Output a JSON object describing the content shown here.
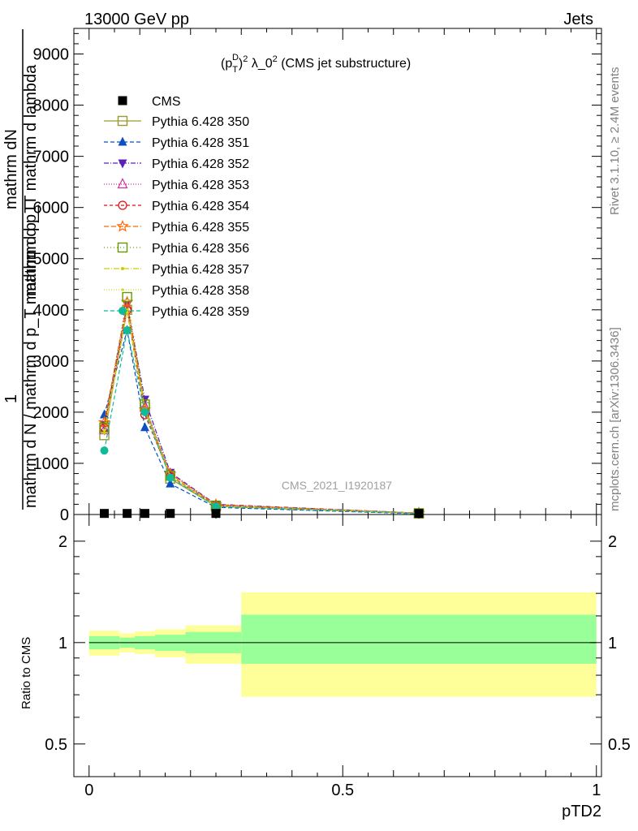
{
  "header": {
    "left": "13000 GeV pp",
    "right": "Jets"
  },
  "side": {
    "rivet": "Rivet 3.1.10, ≥ 2.4M events",
    "mcplots": "mcplots.cern.ch [arXiv:1306.3436]"
  },
  "watermark": "CMS_2021_I1920187",
  "colors": {
    "band_inner": "#99ff99",
    "band_outer": "#ffff99",
    "data": "#000000"
  },
  "chart_data": [
    {
      "type": "line",
      "title": "(p_T^D)^2 λ_0^2 (CMS jet substructure)",
      "title_parts": {
        "base": "(p",
        "sub": "T",
        "sup": "D",
        "tail1": ")",
        "sup2": "2",
        "tail2": " λ_0",
        "sup3": "2",
        "tail3": " (CMS jet substructure)"
      },
      "ylabel_num": "1",
      "ylabel_top": "mathrm dN",
      "ylabel_top2": "mathrm d p_T mathrm d lambda",
      "ylabel_bottom": "mathrm d N / mathrm d p_T mathrm d p_T",
      "xlabel": "pTD2",
      "xlim": [
        -0.03,
        1.01
      ],
      "ylim": [
        0,
        9500
      ],
      "yticks": [
        0,
        1000,
        2000,
        3000,
        4000,
        5000,
        6000,
        7000,
        8000,
        9000
      ],
      "ytick_labels": [
        "0",
        "1000",
        "2000",
        "3000",
        "4000",
        "5000",
        "6000",
        "7000",
        "8000",
        "9000"
      ],
      "legend_placement": "top-left",
      "grid": false,
      "data": {
        "name": "CMS",
        "x": [
          0.03,
          0.075,
          0.11,
          0.16,
          0.25,
          0.65
        ],
        "y": [
          5,
          5,
          5,
          5,
          5,
          5
        ]
      },
      "x": [
        0.03,
        0.075,
        0.11,
        0.16,
        0.25,
        0.65
      ],
      "series": [
        {
          "name": "Pythia 6.428 350",
          "color": "#999933",
          "dash": "",
          "marker": "square-open",
          "values": [
            1550,
            4000,
            2100,
            700,
            160,
            20
          ]
        },
        {
          "name": "Pythia 6.428 351",
          "color": "#0b4fc2",
          "dash": "5,3",
          "marker": "triangle-up",
          "values": [
            1950,
            3600,
            1700,
            600,
            140,
            15
          ]
        },
        {
          "name": "Pythia 6.428 352",
          "color": "#5a22b4",
          "dash": "6,2,1,2",
          "marker": "triangle-down",
          "values": [
            1750,
            4100,
            2250,
            820,
            200,
            28
          ]
        },
        {
          "name": "Pythia 6.428 353",
          "color": "#cc3399",
          "dash": "1,2",
          "marker": "triangle-open",
          "values": [
            1650,
            4050,
            2100,
            800,
            185,
            26
          ]
        },
        {
          "name": "Pythia 6.428 354",
          "color": "#dd1111",
          "dash": "4,3",
          "marker": "circle-open",
          "values": [
            1700,
            4000,
            1950,
            750,
            175,
            24
          ]
        },
        {
          "name": "Pythia 6.428 355",
          "color": "#ff6600",
          "dash": "6,3",
          "marker": "star",
          "values": [
            1800,
            4150,
            2050,
            790,
            190,
            27
          ]
        },
        {
          "name": "Pythia 6.428 356",
          "color": "#669900",
          "dash": "1,3",
          "marker": "square-open",
          "values": [
            1700,
            4250,
            2150,
            760,
            170,
            25
          ]
        },
        {
          "name": "Pythia 6.428 357",
          "color": "#cccc00",
          "dash": "7,2,1,2",
          "marker": "dot-dash",
          "values": [
            1600,
            4000,
            2050,
            740,
            165,
            23
          ]
        },
        {
          "name": "Pythia 6.428 358",
          "color": "#ccdd22",
          "dash": "1,2",
          "marker": "dot",
          "values": [
            1650,
            3950,
            2000,
            730,
            160,
            22
          ]
        },
        {
          "name": "Pythia 6.428 359",
          "color": "#11bb99",
          "dash": "5,3",
          "marker": "circle",
          "values": [
            1250,
            3600,
            2000,
            720,
            155,
            20
          ]
        }
      ]
    },
    {
      "type": "area",
      "ylabel": "Ratio to CMS",
      "xlabel": "pTD2",
      "xlim": [
        -0.03,
        1.01
      ],
      "ylim": [
        0.4,
        2.4
      ],
      "log_y": true,
      "yticks": [
        0.5,
        1,
        2
      ],
      "ytick_labels": [
        "0.5",
        "1",
        "2"
      ],
      "xticks": [
        0,
        0.5,
        1
      ],
      "xtick_labels": [
        "0",
        "0.5",
        "1"
      ],
      "reference_line": 1,
      "bins": [
        {
          "x0": 0.0,
          "x1": 0.06,
          "inner": [
            0.955,
            1.045
          ],
          "outer": [
            0.915,
            1.085
          ]
        },
        {
          "x0": 0.06,
          "x1": 0.09,
          "inner": [
            0.965,
            1.035
          ],
          "outer": [
            0.935,
            1.065
          ]
        },
        {
          "x0": 0.09,
          "x1": 0.13,
          "inner": [
            0.955,
            1.045
          ],
          "outer": [
            0.925,
            1.08
          ]
        },
        {
          "x0": 0.13,
          "x1": 0.19,
          "inner": [
            0.945,
            1.055
          ],
          "outer": [
            0.905,
            1.095
          ]
        },
        {
          "x0": 0.19,
          "x1": 0.3,
          "inner": [
            0.93,
            1.075
          ],
          "outer": [
            0.865,
            1.125
          ]
        },
        {
          "x0": 0.3,
          "x1": 1.0,
          "inner": [
            0.865,
            1.21
          ],
          "outer": [
            0.69,
            1.41
          ]
        }
      ]
    }
  ]
}
